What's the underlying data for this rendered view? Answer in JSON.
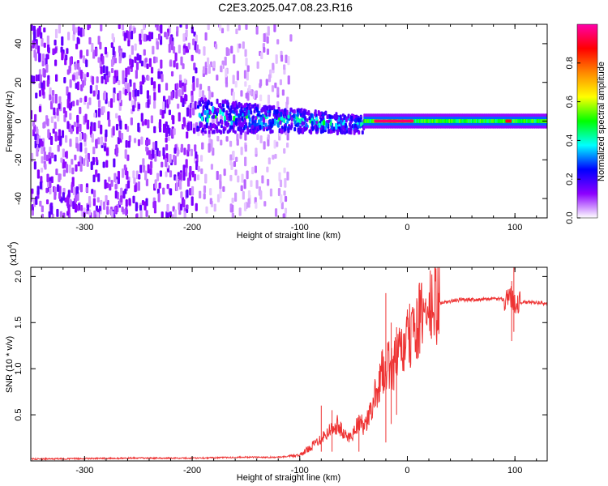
{
  "title": "C2E3.2025.047.08.23.R16",
  "chart_data": [
    {
      "type": "heatmap",
      "xlabel": "Height of straight line (km)",
      "ylabel": "Frequency (Hz)",
      "xlim": [
        -350,
        130
      ],
      "ylim": [
        -50,
        50
      ],
      "x_ticks": [
        -300,
        -200,
        -100,
        0,
        100
      ],
      "y_ticks": [
        -40,
        -20,
        0,
        20,
        40
      ],
      "colorbar": {
        "label": "Normalized spectral amplitude",
        "range": [
          0,
          1
        ],
        "ticks": [
          0.0,
          0.2,
          0.4,
          0.6,
          0.8
        ],
        "colors": [
          "#ffffff",
          "#8c00ff",
          "#0000ff",
          "#00ffff",
          "#00ff00",
          "#ffff00",
          "#ff8800",
          "#ff0000",
          "#ff00aa"
        ]
      },
      "regions": [
        {
          "x_range": [
            -350,
            -195
          ],
          "freq_range": [
            -50,
            50
          ],
          "amplitude": 0.1,
          "pattern": "scattered noise"
        },
        {
          "x_range": [
            -195,
            -108
          ],
          "freq_range": [
            -50,
            50
          ],
          "amplitude": 0.05,
          "pattern": "faint scattered noise"
        },
        {
          "x_range": [
            -195,
            -40
          ],
          "freq_range": [
            -12,
            12
          ],
          "amplitude": 0.4,
          "pattern": "turbulent band"
        },
        {
          "x_range": [
            -40,
            130
          ],
          "freq_range": [
            -3,
            3
          ],
          "amplitude": 0.5,
          "pattern": "steady carrier"
        },
        {
          "x_range": [
            -30,
            5
          ],
          "freq_range": [
            -1,
            1
          ],
          "amplitude": 0.95,
          "pattern": "red peak"
        },
        {
          "x_range": [
            92,
            96
          ],
          "freq_range": [
            -1,
            1
          ],
          "amplitude": 0.9,
          "pattern": "red peak"
        }
      ]
    },
    {
      "type": "line",
      "xlabel": "Height of straight line (km)",
      "ylabel": "SNR (10 * v/v)",
      "y_multiplier": "(x10",
      "y_multiplier_exp": "4",
      "xlim": [
        -350,
        130
      ],
      "ylim": [
        0,
        2.1
      ],
      "x_ticks": [
        -300,
        -200,
        -100,
        0,
        100
      ],
      "y_ticks": [
        0.5,
        1.0,
        1.5,
        2.0
      ],
      "color": "#ee3333",
      "series": [
        {
          "x": [
            -350,
            -300,
            -250,
            -200,
            -150,
            -120,
            -100,
            -90,
            -80,
            -70,
            -65,
            -60,
            -55,
            -50,
            -45,
            -40,
            -35,
            -30,
            -25,
            -20,
            -15,
            -10,
            -5,
            0,
            5,
            10,
            15,
            20,
            25,
            30,
            40,
            50,
            60,
            70,
            80,
            90,
            95,
            100,
            105,
            110,
            120,
            130
          ],
          "values": [
            0.02,
            0.025,
            0.03,
            0.03,
            0.04,
            0.04,
            0.06,
            0.15,
            0.25,
            0.35,
            0.4,
            0.3,
            0.25,
            0.3,
            0.45,
            0.35,
            0.5,
            0.7,
            0.9,
            1.05,
            1.0,
            1.1,
            1.2,
            1.3,
            1.4,
            1.5,
            1.58,
            1.63,
            1.68,
            1.71,
            1.73,
            1.75,
            1.75,
            1.75,
            1.76,
            1.75,
            1.8,
            1.72,
            1.72,
            1.72,
            1.72,
            1.7
          ],
          "spikes": [
            {
              "x": -80,
              "values": [
                0.1,
                0.6
              ]
            },
            {
              "x": -70,
              "values": [
                0.1,
                0.55
              ]
            },
            {
              "x": -45,
              "values": [
                0.1,
                0.5
              ]
            },
            {
              "x": -20,
              "values": [
                0.2,
                1.82
              ]
            },
            {
              "x": -15,
              "values": [
                0.4,
                1.5
              ]
            },
            {
              "x": -10,
              "values": [
                0.5,
                1.45
              ]
            },
            {
              "x": 97,
              "values": [
                1.3,
                1.95
              ]
            },
            {
              "x": 99,
              "values": [
                1.4,
                2.1
              ]
            }
          ]
        }
      ]
    }
  ]
}
